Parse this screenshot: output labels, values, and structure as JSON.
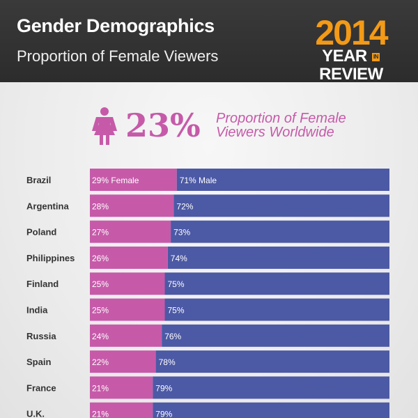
{
  "header": {
    "title": "Gender Demographics",
    "subtitle": "Proportion of Female Viewers",
    "badge_year": "2014",
    "badge_year_word": "YEAR",
    "badge_in": "IN",
    "badge_review": "REVIEW"
  },
  "highlight": {
    "value": "23%",
    "caption_line1": "Proportion of Female",
    "caption_line2": "Viewers Worldwide"
  },
  "colors": {
    "female": "#c65aa9",
    "male": "#4c59a5",
    "accent": "#f39a16",
    "header_bg": "#2c2c2c"
  },
  "icons": [
    "female-figure-icon"
  ],
  "chart_data": {
    "type": "bar",
    "stacked": true,
    "orientation": "horizontal",
    "categories": [
      "Brazil",
      "Argentina",
      "Poland",
      "Philippines",
      "Finland",
      "India",
      "Russia",
      "Spain",
      "France",
      "U.K."
    ],
    "series": [
      {
        "name": "Female",
        "values": [
          29,
          28,
          27,
          26,
          25,
          25,
          24,
          22,
          21,
          21
        ]
      },
      {
        "name": "Male",
        "values": [
          71,
          72,
          73,
          74,
          75,
          75,
          76,
          78,
          79,
          79
        ]
      }
    ],
    "data_labels": {
      "female": [
        "29% Female",
        "28%",
        "27%",
        "26%",
        "25%",
        "25%",
        "24%",
        "22%",
        "21%",
        "21%"
      ],
      "male": [
        "71% Male",
        "72%",
        "73%",
        "74%",
        "75%",
        "75%",
        "76%",
        "78%",
        "79%",
        "79%"
      ]
    },
    "xlim": [
      0,
      100
    ]
  }
}
